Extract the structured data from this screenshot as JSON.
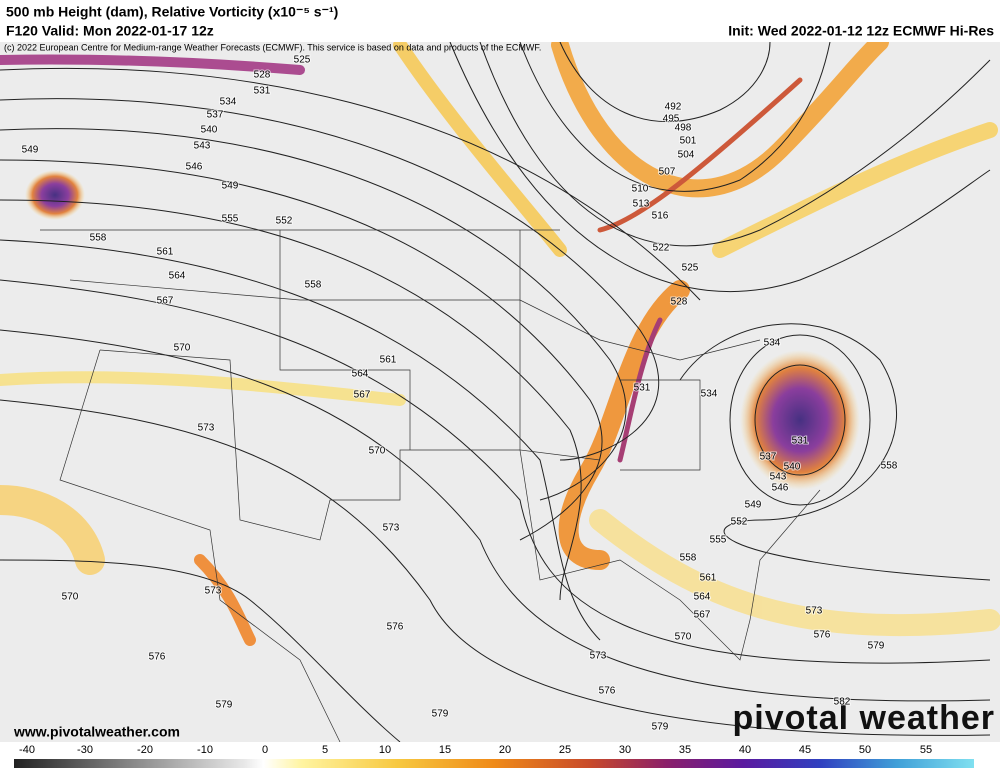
{
  "header": {
    "title": "500 mb Height (dam), Relative Vorticity (x10⁻⁵ s⁻¹)",
    "valid": "F120 Valid: Mon 2022-01-17 12z",
    "init": "Init: Wed 2022-01-12 12z ECMWF Hi-Res",
    "copyright": "(c) 2022 European Centre for Medium-range Weather Forecasts (ECMWF). This service is based on data and products of the ECMWF."
  },
  "contour_labels": [
    525,
    528,
    531,
    534,
    537,
    540,
    543,
    546,
    549,
    549,
    555,
    552,
    558,
    561,
    564,
    567,
    558,
    570,
    561,
    564,
    567,
    573,
    570,
    573,
    570,
    573,
    576,
    576,
    579,
    579,
    573,
    570,
    576,
    579,
    492,
    495,
    498,
    501,
    504,
    507,
    510,
    513,
    516,
    522,
    525,
    528,
    531,
    534,
    534,
    537,
    540,
    543,
    546,
    549,
    552,
    555,
    558,
    561,
    564,
    567,
    573,
    576,
    579,
    582,
    558,
    531
  ],
  "colorbar": {
    "ticks": [
      -40,
      -30,
      -20,
      -10,
      0,
      5,
      10,
      15,
      20,
      25,
      30,
      35,
      40,
      45,
      50,
      55
    ]
  },
  "footer": {
    "website": "www.pivotalweather.com",
    "logo": "pivotal weather"
  }
}
